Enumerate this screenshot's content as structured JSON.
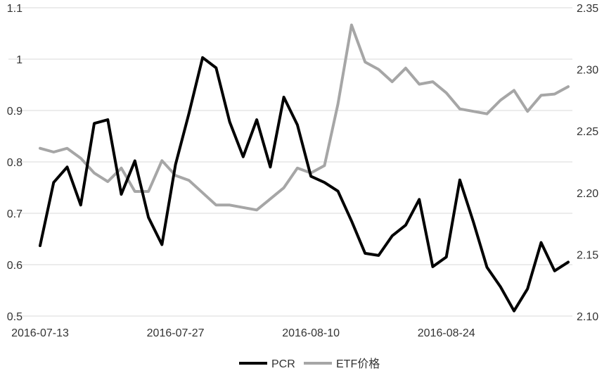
{
  "chart_data": {
    "type": "line",
    "title": "",
    "x": [
      "2016-07-13",
      "2016-07-14",
      "2016-07-15",
      "2016-07-18",
      "2016-07-19",
      "2016-07-20",
      "2016-07-21",
      "2016-07-22",
      "2016-07-25",
      "2016-07-26",
      "2016-07-27",
      "2016-07-28",
      "2016-07-29",
      "2016-08-01",
      "2016-08-02",
      "2016-08-03",
      "2016-08-04",
      "2016-08-05",
      "2016-08-08",
      "2016-08-09",
      "2016-08-10",
      "2016-08-11",
      "2016-08-12",
      "2016-08-15",
      "2016-08-16",
      "2016-08-17",
      "2016-08-18",
      "2016-08-19",
      "2016-08-22",
      "2016-08-23",
      "2016-08-24",
      "2016-08-25",
      "2016-08-26",
      "2016-08-29",
      "2016-08-30",
      "2016-08-31",
      "2016-09-01",
      "2016-09-02",
      "2016-09-05",
      "2016-09-06"
    ],
    "x_tick_labels": [
      "2016-07-13",
      "2016-07-27",
      "2016-08-10",
      "2016-08-24"
    ],
    "series": [
      {
        "name": "PCR",
        "axis": "left",
        "color": "#000000",
        "values": [
          0.637,
          0.76,
          0.79,
          0.716,
          0.875,
          0.882,
          0.737,
          0.802,
          0.692,
          0.639,
          0.795,
          0.895,
          1.003,
          0.983,
          0.878,
          0.81,
          0.882,
          0.79,
          0.926,
          0.872,
          0.772,
          0.76,
          0.743,
          0.685,
          0.622,
          0.618,
          0.656,
          0.677,
          0.727,
          0.596,
          0.615,
          0.765,
          0.683,
          0.595,
          0.557,
          0.51,
          0.553,
          0.643,
          0.588,
          0.605
        ]
      },
      {
        "name": "ETF价格",
        "axis": "right",
        "color": "#a6a6a6",
        "values": [
          2.236,
          2.233,
          2.236,
          2.228,
          2.216,
          2.209,
          2.22,
          2.201,
          2.201,
          2.226,
          2.214,
          2.21,
          2.2,
          2.19,
          2.19,
          2.188,
          2.186,
          2.195,
          2.204,
          2.22,
          2.216,
          2.222,
          2.272,
          2.336,
          2.306,
          2.3,
          2.29,
          2.301,
          2.288,
          2.29,
          2.281,
          2.268,
          2.266,
          2.264,
          2.275,
          2.283,
          2.266,
          2.279,
          2.28,
          2.286
        ]
      }
    ],
    "y_left": {
      "ylim": [
        0.5,
        1.1
      ],
      "ticks": [
        "0.5",
        "0.6",
        "0.7",
        "0.8",
        "0.9",
        "1",
        "1.1"
      ]
    },
    "y_right": {
      "ylim": [
        2.1,
        2.35
      ],
      "ticks": [
        "2.10",
        "2.15",
        "2.20",
        "2.25",
        "2.30",
        "2.35"
      ]
    },
    "grid": "horizontal",
    "legend_position": "bottom"
  }
}
